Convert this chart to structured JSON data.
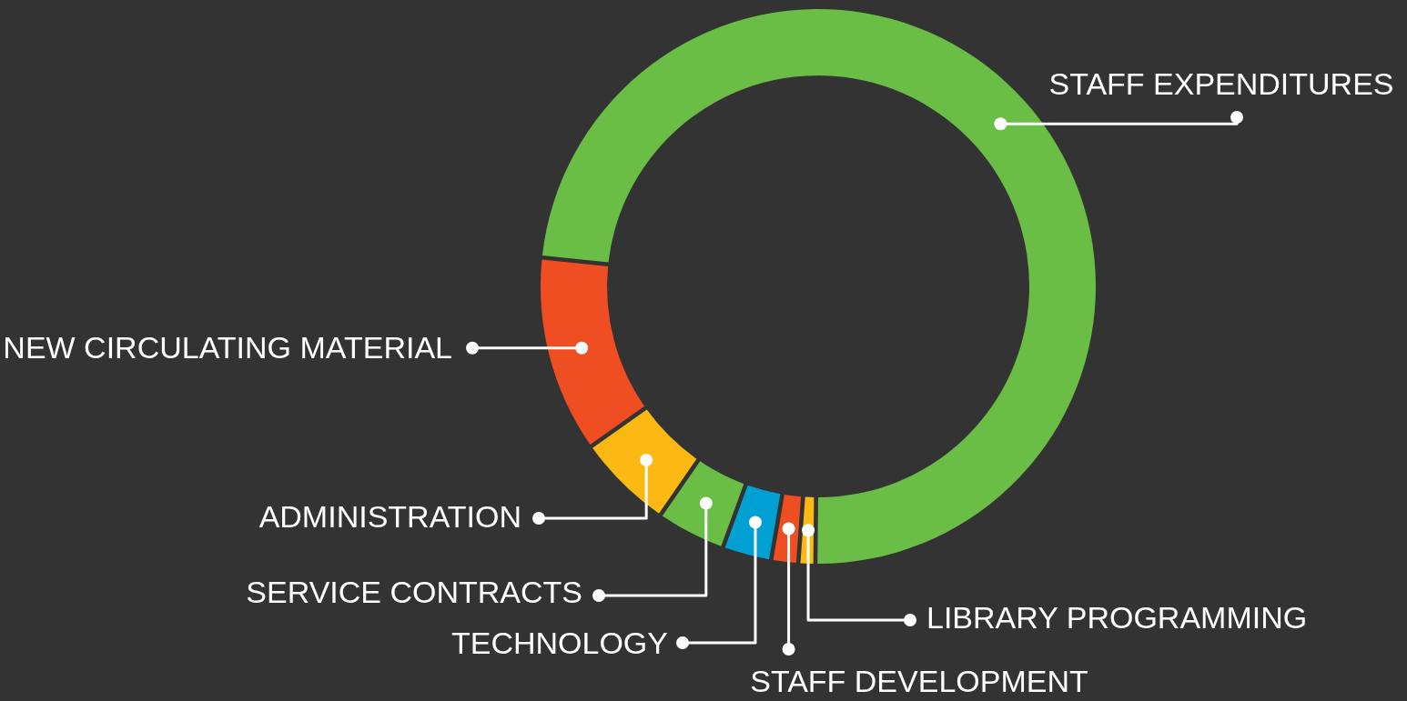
{
  "chart_data": {
    "type": "donut",
    "categories": [
      "LIBRARY PROGRAMMING",
      "STAFF DEVELOPMENT",
      "TECHNOLOGY",
      "SERVICE CONTRACTS",
      "ADMINISTRATION",
      "NEW CIRCULATING MATERIAL",
      "STAFF EXPENDITURES"
    ],
    "values": [
      0.8,
      1.4,
      2.7,
      3.9,
      5.5,
      11.4,
      74.3
    ],
    "colors": [
      "#fdb913",
      "#ef4e23",
      "#00a0d2",
      "#6abd45",
      "#fdb913",
      "#ef4e23",
      "#6abd45"
    ]
  }
}
